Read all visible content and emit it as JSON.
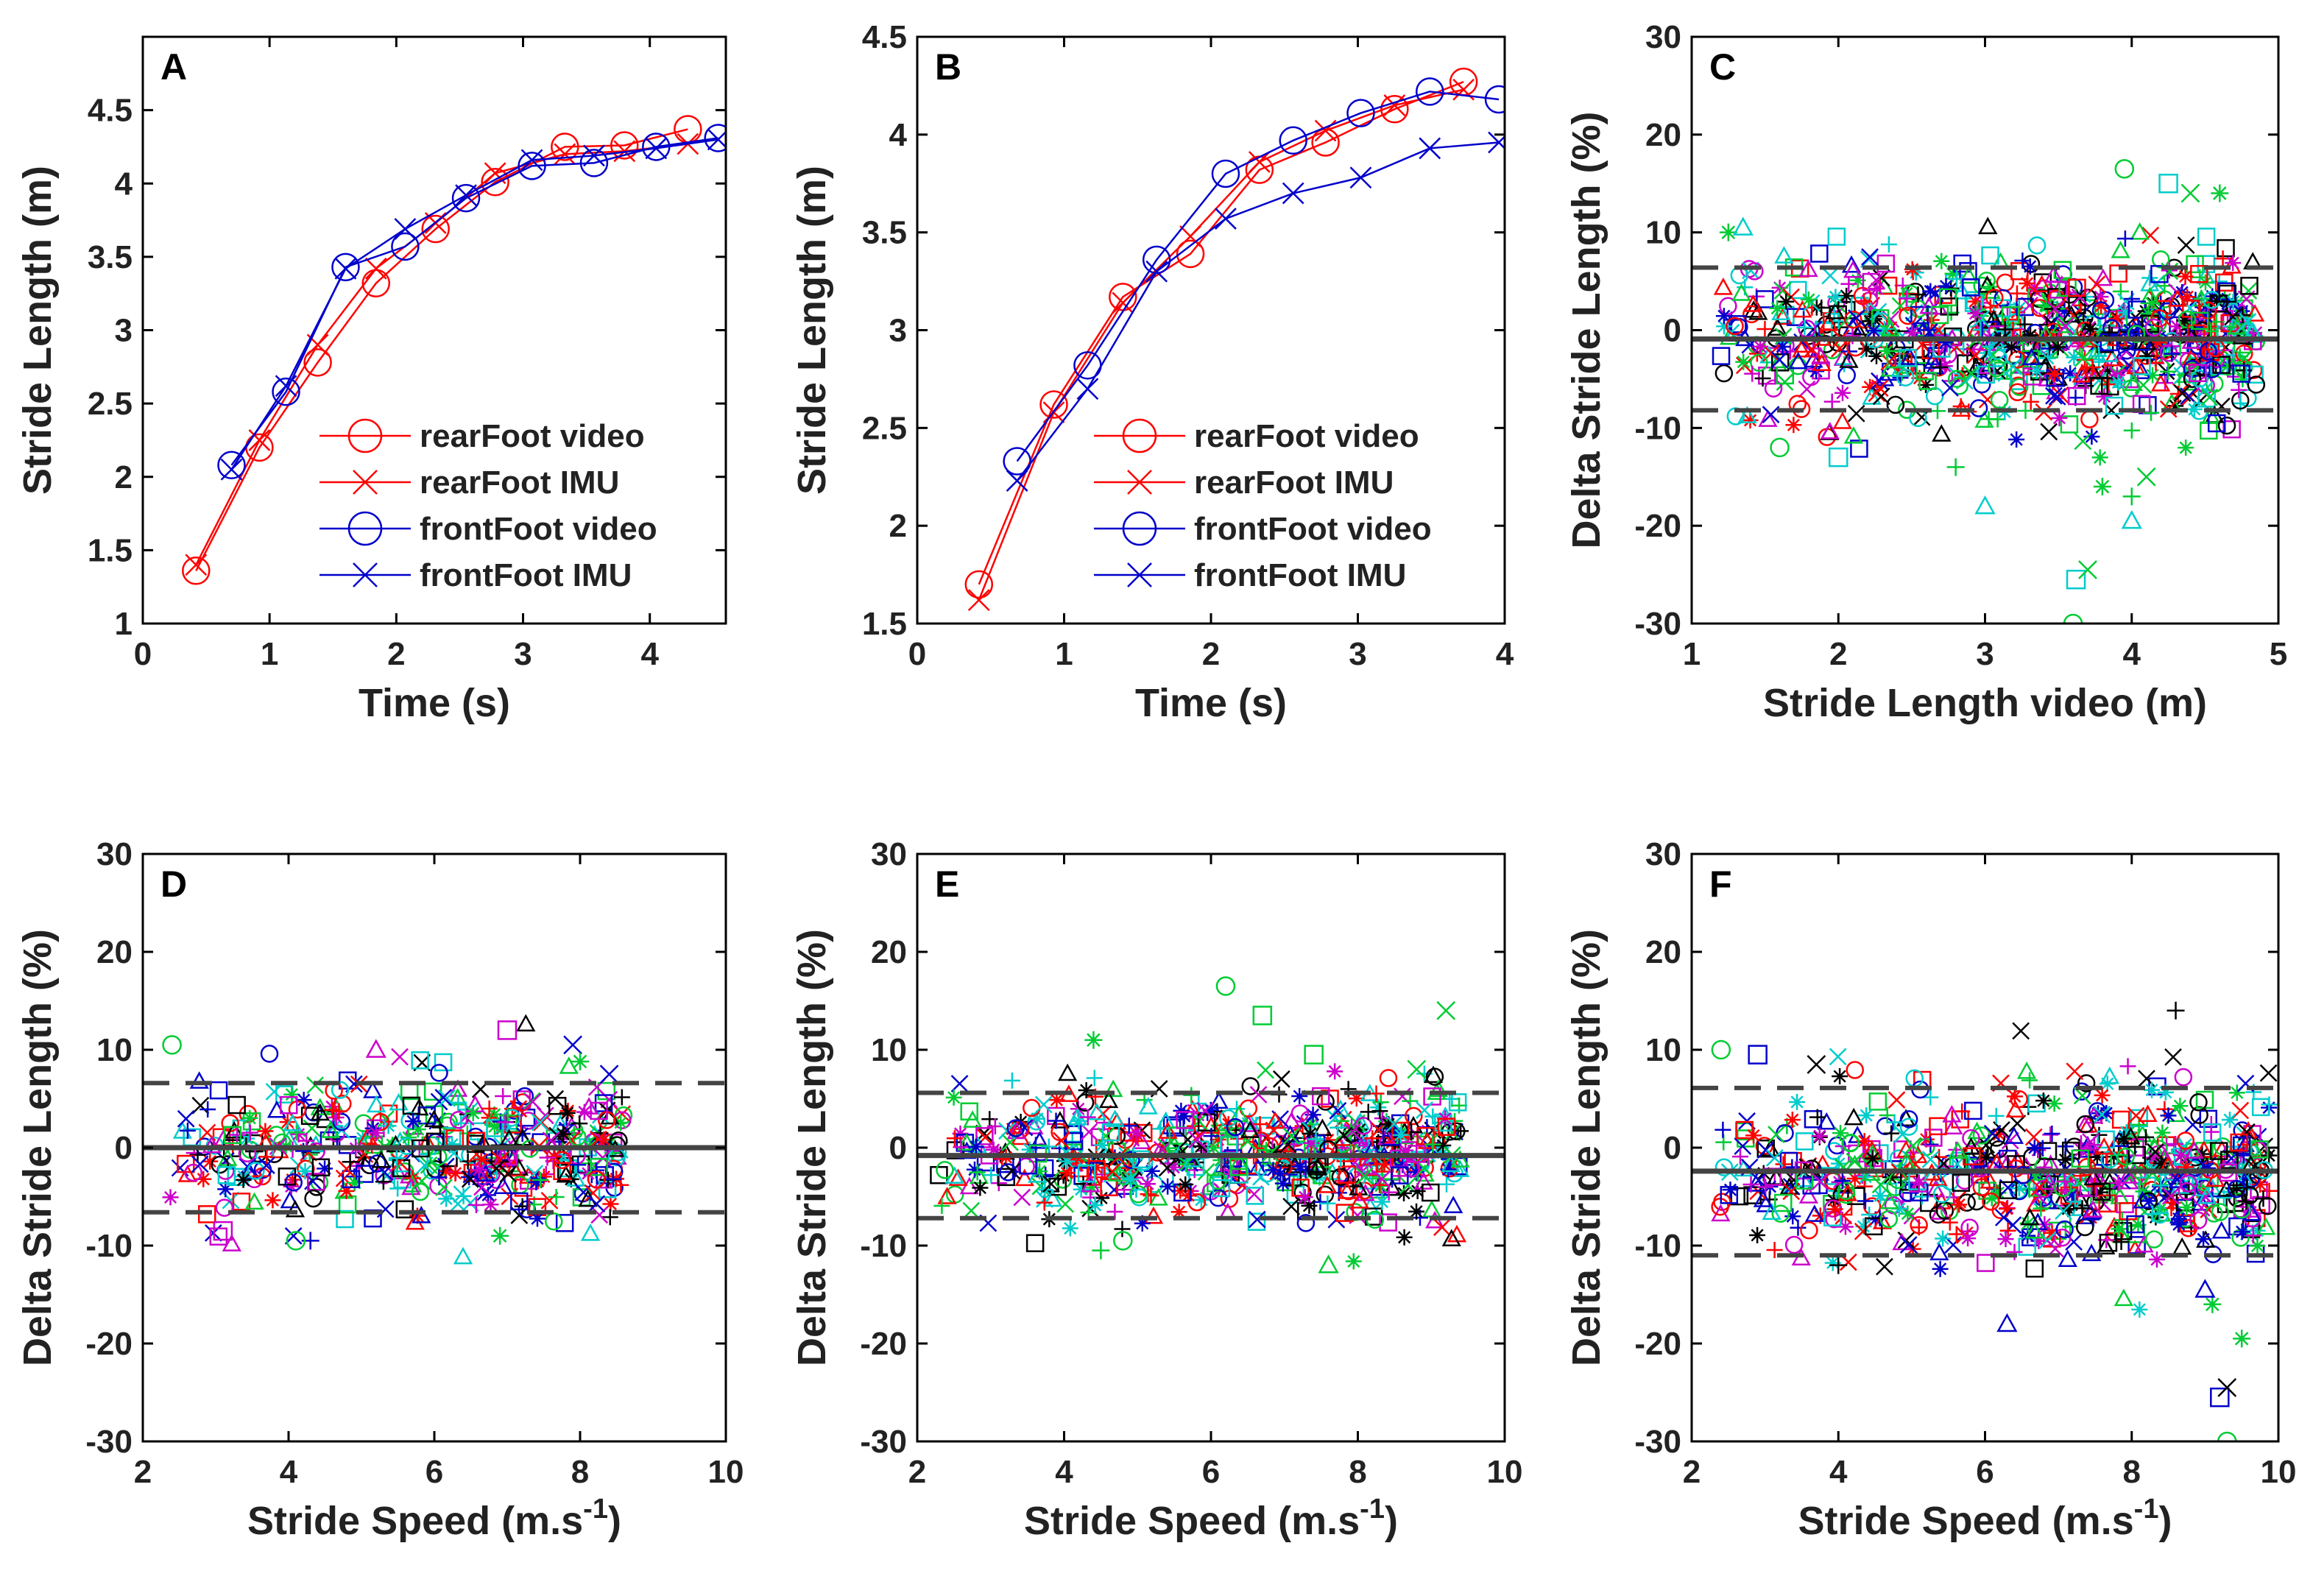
{
  "chart_data": [
    {
      "panel": "A",
      "type": "line",
      "xlabel": "Time (s)",
      "ylabel": "Stride Length (m)",
      "xlim": [
        0,
        4.6
      ],
      "ylim": [
        1,
        5
      ],
      "xticks": [
        0,
        1,
        2,
        3,
        4
      ],
      "xtick_labels": [
        "0",
        "1",
        "2",
        "3",
        "4"
      ],
      "yticks": [
        1,
        1.5,
        2,
        2.5,
        3,
        3.5,
        4,
        4.5
      ],
      "ytick_labels": [
        "1",
        "1.5",
        "2",
        "2.5",
        "3",
        "3.5",
        "4",
        "4.5"
      ],
      "legend": [
        "rearFoot video",
        "rearFoot IMU",
        "frontFoot video",
        "frontFoot IMU"
      ],
      "series": [
        {
          "name": "rearFoot video",
          "color": "#ff0000",
          "marker": "circle",
          "x": [
            0.42,
            0.92,
            1.38,
            1.84,
            2.31,
            2.78,
            3.33,
            3.8,
            4.3
          ],
          "y": [
            1.36,
            2.2,
            2.78,
            3.32,
            3.69,
            4.01,
            4.25,
            4.26,
            4.37
          ]
        },
        {
          "name": "rearFoot IMU",
          "color": "#ff0000",
          "marker": "x",
          "x": [
            0.42,
            0.92,
            1.38,
            1.84,
            2.31,
            2.78,
            3.33,
            3.8,
            4.3
          ],
          "y": [
            1.4,
            2.25,
            2.9,
            3.42,
            3.73,
            4.07,
            4.2,
            4.22,
            4.27
          ]
        },
        {
          "name": "frontFoot video",
          "color": "#0000cc",
          "marker": "circle",
          "x": [
            0.7,
            1.13,
            1.6,
            2.07,
            2.55,
            3.07,
            3.56,
            4.05,
            4.54
          ],
          "y": [
            2.08,
            2.58,
            3.43,
            3.57,
            3.9,
            4.12,
            4.14,
            4.25,
            4.31
          ]
        },
        {
          "name": "frontFoot IMU",
          "color": "#0000cc",
          "marker": "x",
          "x": [
            0.7,
            1.13,
            1.6,
            2.07,
            2.55,
            3.07,
            3.56,
            4.05,
            4.54
          ],
          "y": [
            2.05,
            2.62,
            3.42,
            3.69,
            3.92,
            4.16,
            4.19,
            4.24,
            4.3
          ]
        }
      ]
    },
    {
      "panel": "B",
      "type": "line",
      "xlabel": "Time (s)",
      "ylabel": "Stride Length (m)",
      "xlim": [
        0,
        4
      ],
      "ylim": [
        1.5,
        4.5
      ],
      "xticks": [
        0,
        1,
        2,
        3,
        4
      ],
      "xtick_labels": [
        "0",
        "1",
        "2",
        "3",
        "4"
      ],
      "yticks": [
        1.5,
        2,
        2.5,
        3,
        3.5,
        4,
        4.5
      ],
      "ytick_labels": [
        "1.5",
        "2",
        "2.5",
        "3",
        "3.5",
        "4",
        "4.5"
      ],
      "legend": [
        "rearFoot video",
        "rearFoot IMU",
        "frontFoot video",
        "frontFoot IMU"
      ],
      "series": [
        {
          "name": "rearFoot video",
          "color": "#ff0000",
          "marker": "circle",
          "x": [
            0.42,
            0.93,
            1.4,
            1.86,
            2.33,
            2.78,
            3.25,
            3.72
          ],
          "y": [
            1.7,
            2.62,
            3.17,
            3.39,
            3.82,
            3.96,
            4.13,
            4.27
          ]
        },
        {
          "name": "rearFoot IMU",
          "color": "#ff0000",
          "marker": "x",
          "x": [
            0.42,
            0.93,
            1.4,
            1.86,
            2.33,
            2.78,
            3.25,
            3.72
          ],
          "y": [
            1.62,
            2.58,
            3.14,
            3.48,
            3.86,
            4.02,
            4.15,
            4.23
          ]
        },
        {
          "name": "frontFoot video",
          "color": "#0000cc",
          "marker": "circle",
          "x": [
            0.68,
            1.16,
            1.63,
            2.1,
            2.56,
            3.02,
            3.49,
            3.96
          ],
          "y": [
            2.33,
            2.82,
            3.36,
            3.8,
            3.97,
            4.11,
            4.22,
            4.18
          ]
        },
        {
          "name": "frontFoot IMU",
          "color": "#0000cc",
          "marker": "x",
          "x": [
            0.68,
            1.16,
            1.63,
            2.1,
            2.56,
            3.02,
            3.49,
            3.96
          ],
          "y": [
            2.23,
            2.7,
            3.3,
            3.57,
            3.7,
            3.78,
            3.93,
            3.96
          ]
        }
      ]
    },
    {
      "panel": "C",
      "type": "scatter",
      "xlabel": "Stride Length video (m)",
      "ylabel": "Delta Stride Length (%)",
      "xlim": [
        1,
        5
      ],
      "ylim": [
        -30,
        30
      ],
      "xticks": [
        1,
        2,
        3,
        4,
        5
      ],
      "xtick_labels": [
        "1",
        "2",
        "3",
        "4",
        "5"
      ],
      "yticks": [
        -30,
        -20,
        -10,
        0,
        10,
        20,
        30
      ],
      "ytick_labels": [
        "-30",
        "-20",
        "-10",
        "0",
        "10",
        "20",
        "30"
      ],
      "bias": -0.9,
      "loa": [
        -8.2,
        6.4
      ],
      "point_count": 900,
      "x_range_data": [
        1.2,
        4.85
      ],
      "y_spread": 4.0,
      "outliers": [
        [
          3.6,
          -30
        ],
        [
          3.62,
          -25.5
        ],
        [
          3.7,
          -24.5
        ],
        [
          3.8,
          -16
        ],
        [
          4.0,
          -19.5
        ],
        [
          4.0,
          -17
        ],
        [
          3.95,
          16.5
        ],
        [
          4.25,
          15
        ],
        [
          4.4,
          14
        ],
        [
          4.6,
          14
        ],
        [
          3.0,
          -18
        ],
        [
          2.8,
          -14
        ],
        [
          1.6,
          -12
        ],
        [
          2.0,
          -13
        ],
        [
          4.1,
          -15
        ],
        [
          1.25,
          10
        ],
        [
          1.35,
          10.5
        ]
      ]
    },
    {
      "panel": "D",
      "type": "scatter",
      "xlabel": "Stride Speed (m.s-1)",
      "ylabel": "Delta Stride Length (%)",
      "xlim": [
        2,
        10
      ],
      "ylim": [
        -30,
        30
      ],
      "xticks": [
        2,
        4,
        6,
        8,
        10
      ],
      "xtick_labels": [
        "2",
        "4",
        "6",
        "8",
        "10"
      ],
      "yticks": [
        -30,
        -20,
        -10,
        0,
        10,
        20,
        30
      ],
      "ytick_labels": [
        "-30",
        "-20",
        "-10",
        "0",
        "10",
        "20",
        "30"
      ],
      "bias": 0.0,
      "loa": [
        -6.6,
        6.6
      ],
      "point_count": 500,
      "x_range_data": [
        2.3,
        8.6
      ],
      "y_spread": 3.4,
      "outliers": [
        [
          2.4,
          10.5
        ],
        [
          7.0,
          12
        ],
        [
          7.9,
          10.5
        ],
        [
          6.9,
          -9
        ],
        [
          5.2,
          10
        ],
        [
          4.3,
          -9.5
        ],
        [
          4.1,
          -9.5
        ],
        [
          3.1,
          -8.5
        ],
        [
          8.4,
          7.5
        ],
        [
          8.0,
          8.8
        ]
      ]
    },
    {
      "panel": "E",
      "type": "scatter",
      "xlabel": "Stride Speed (m.s-1)",
      "ylabel": "Delta Stride Length (%)",
      "xlim": [
        2,
        10
      ],
      "ylim": [
        -30,
        30
      ],
      "xticks": [
        2,
        4,
        6,
        8,
        10
      ],
      "xtick_labels": [
        "2",
        "4",
        "6",
        "8",
        "10"
      ],
      "yticks": [
        -30,
        -20,
        -10,
        0,
        10,
        20,
        30
      ],
      "ytick_labels": [
        "-30",
        "-20",
        "-10",
        "0",
        "10",
        "20",
        "30"
      ],
      "bias": -0.8,
      "loa": [
        -7.2,
        5.6
      ],
      "point_count": 650,
      "x_range_data": [
        2.2,
        9.4
      ],
      "y_spread": 3.3,
      "outliers": [
        [
          6.2,
          16.5
        ],
        [
          6.7,
          13.5
        ],
        [
          9.2,
          14
        ],
        [
          4.4,
          11
        ],
        [
          7.6,
          -12
        ],
        [
          4.5,
          -10.5
        ],
        [
          4.8,
          -9.5
        ],
        [
          7.4,
          9.5
        ],
        [
          8.8,
          8
        ]
      ]
    },
    {
      "panel": "F",
      "type": "scatter",
      "xlabel": "Stride Speed (m.s-1)",
      "ylabel": "Delta Stride Length (%)",
      "xlim": [
        2,
        10
      ],
      "ylim": [
        -30,
        30
      ],
      "xticks": [
        2,
        4,
        6,
        8,
        10
      ],
      "xtick_labels": [
        "2",
        "4",
        "6",
        "8",
        "10"
      ],
      "yticks": [
        -30,
        -20,
        -10,
        0,
        10,
        20,
        30
      ],
      "ytick_labels": [
        "-30",
        "-20",
        "-10",
        "0",
        "10",
        "20",
        "30"
      ],
      "bias": -2.4,
      "loa": [
        -11.0,
        6.1
      ],
      "point_count": 750,
      "x_range_data": [
        2.3,
        9.9
      ],
      "y_spread": 4.2,
      "outliers": [
        [
          9.3,
          -30
        ],
        [
          9.2,
          -25.5
        ],
        [
          9.3,
          -24.5
        ],
        [
          9.5,
          -19.5
        ],
        [
          6.3,
          -18
        ],
        [
          8.6,
          14
        ],
        [
          2.4,
          10
        ],
        [
          2.9,
          9.5
        ],
        [
          3.7,
          8.5
        ],
        [
          9.1,
          -16
        ],
        [
          9.0,
          -14.5
        ],
        [
          4.0,
          -12
        ]
      ]
    }
  ],
  "scatter_palette": [
    "#ff0000",
    "#0000cc",
    "#00cc33",
    "#000000",
    "#00cccc",
    "#cc00cc"
  ]
}
